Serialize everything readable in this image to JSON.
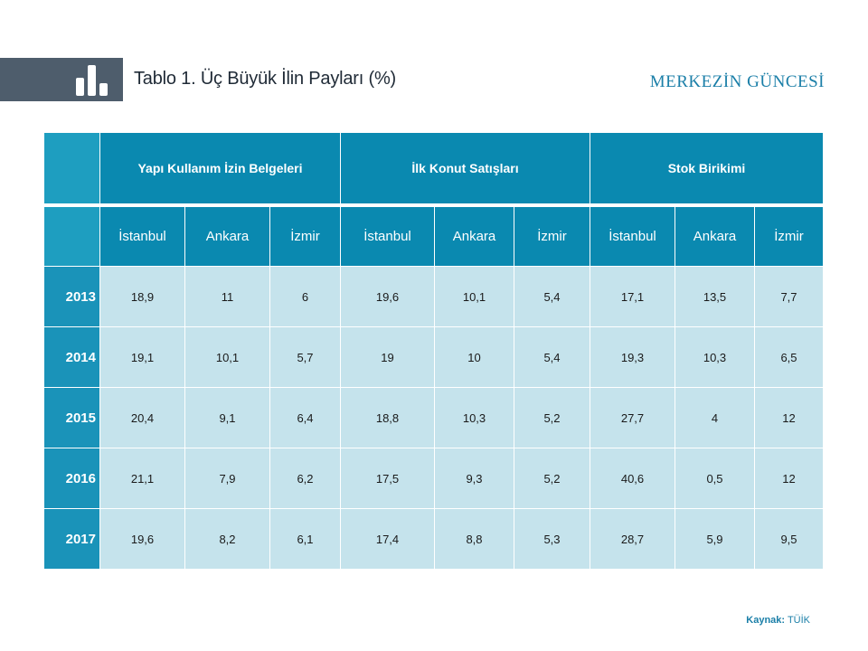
{
  "header": {
    "table_number": "Tablo 1.",
    "title": "Üç Büyük İlin Payları (%)",
    "brand": "MERKEZİN GÜNCESİ",
    "icon": "bar-chart-icon"
  },
  "table": {
    "groups": [
      "Yapı Kullanım İzin Belgeleri",
      "İlk Konut Satışları",
      "Stok Birikimi"
    ],
    "cities": [
      "İstanbul",
      "Ankara",
      "İzmir"
    ],
    "rows": [
      {
        "year": "2013",
        "values": [
          "18,9",
          "11",
          "6",
          "19,6",
          "10,1",
          "5,4",
          "17,1",
          "13,5",
          "7,7"
        ]
      },
      {
        "year": "2014",
        "values": [
          "19,1",
          "10,1",
          "5,7",
          "19",
          "10",
          "5,4",
          "19,3",
          "10,3",
          "6,5"
        ]
      },
      {
        "year": "2015",
        "values": [
          "20,4",
          "9,1",
          "6,4",
          "18,8",
          "10,3",
          "5,2",
          "27,7",
          "4",
          "12"
        ]
      },
      {
        "year": "2016",
        "values": [
          "21,1",
          "7,9",
          "6,2",
          "17,5",
          "9,3",
          "5,2",
          "40,6",
          "0,5",
          "12"
        ]
      },
      {
        "year": "2017",
        "values": [
          "19,6",
          "8,2",
          "6,1",
          "17,4",
          "8,8",
          "5,3",
          "28,7",
          "5,9",
          "9,5"
        ]
      }
    ]
  },
  "footer": {
    "source_label": "Kaynak:",
    "source_value": "TÜİK"
  },
  "colors": {
    "header_blue": "#0a89b0",
    "cell_light": "#c5e3ec",
    "brand": "#1b7fa8",
    "band": "#4e5d6c"
  }
}
